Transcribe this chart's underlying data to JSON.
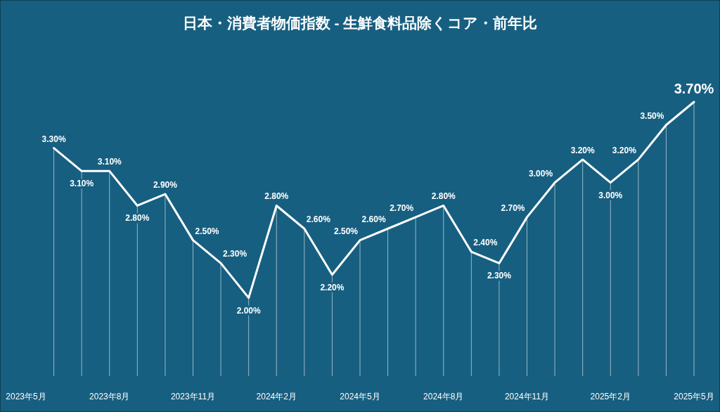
{
  "chart_data": {
    "type": "line",
    "title": "日本・消費者物価指数 - 生鮮食料品除くコア・前年比",
    "categories": [
      "2023年5月",
      null,
      null,
      "2023年8月",
      null,
      null,
      "2023年11月",
      null,
      null,
      "2024年2月",
      null,
      null,
      "2024年5月",
      null,
      null,
      "2024年8月",
      null,
      null,
      "2024年11月",
      null,
      null,
      "2025年2月",
      null,
      null,
      "2025年5月"
    ],
    "series": [
      {
        "color": "#ffffff",
        "values": [
          null,
          3.3,
          3.1,
          3.1,
          2.8,
          2.9,
          2.5,
          2.3,
          2.0,
          2.8,
          2.6,
          2.2,
          2.5,
          2.6,
          2.7,
          2.8,
          2.4,
          2.3,
          2.7,
          3.0,
          3.2,
          3.0,
          3.2,
          3.5,
          3.7
        ],
        "value_labels": [
          null,
          "3.30%",
          "3.10%",
          "3.10%",
          "2.80%",
          "2.90%",
          "2.50%",
          "2.30%",
          "2.00%",
          "2.80%",
          "2.60%",
          "2.20%",
          "2.50%",
          "2.60%",
          "2.70%",
          "2.80%",
          "2.40%",
          "2.30%",
          "2.70%",
          "3.00%",
          "3.20%",
          "3.00%",
          "3.20%",
          "3.50%",
          "3.70%"
        ]
      }
    ],
    "grid": "x",
    "marker": "none",
    "line_style": "solid"
  }
}
